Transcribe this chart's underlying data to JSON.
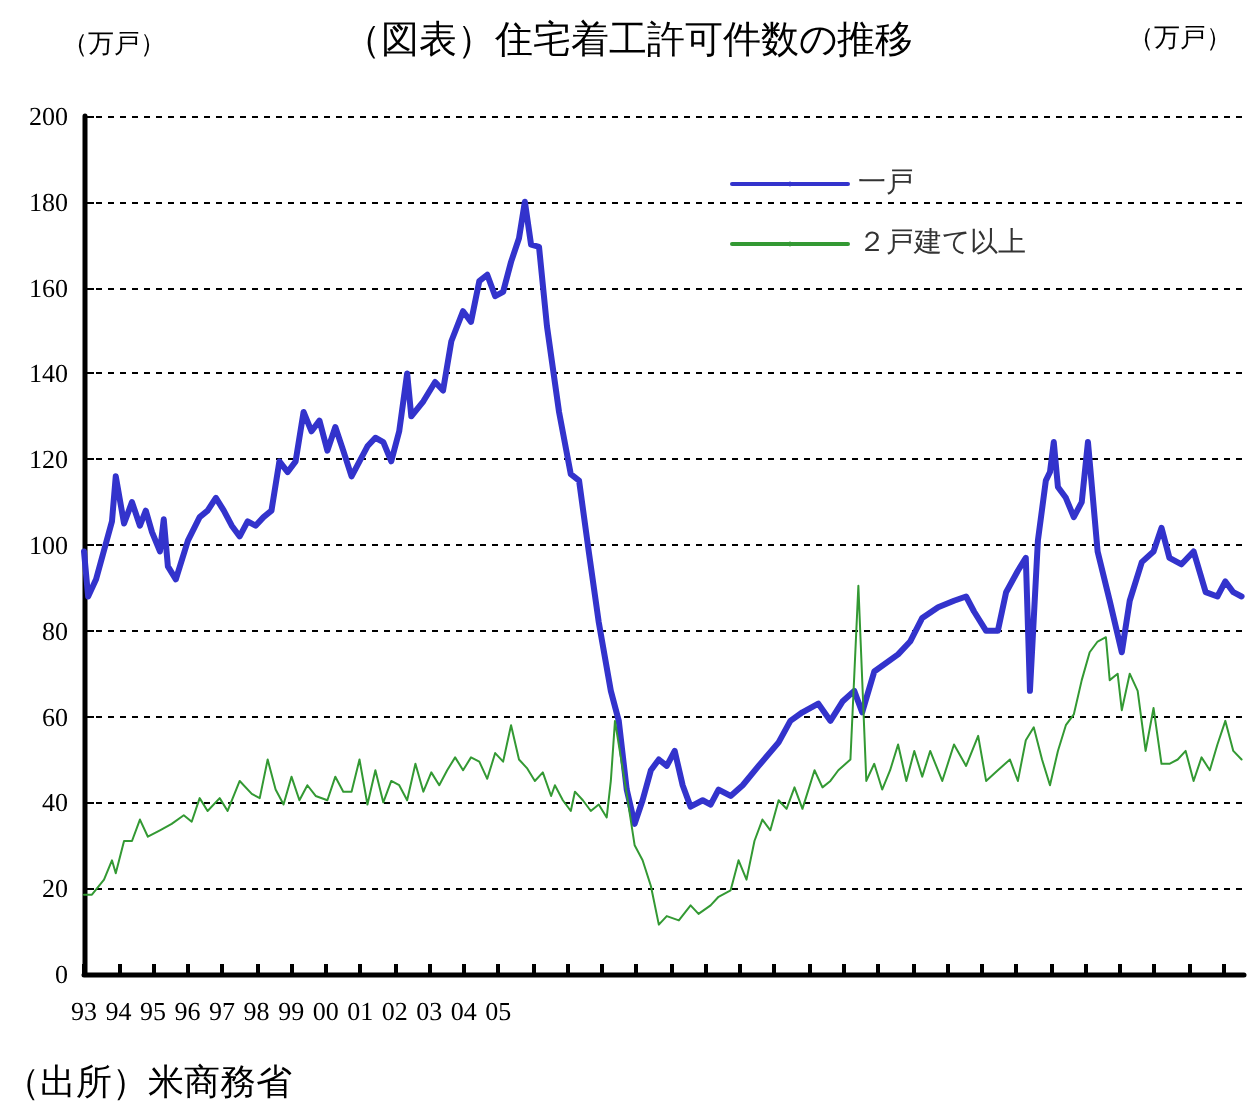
{
  "chart_data": {
    "type": "line",
    "title": "（図表）住宅着工許可件数の推移",
    "ylabel": "（万戸）",
    "annotations": [
      "（万戸）",
      "（出所）米商務省"
    ],
    "xlim": [
      1993,
      2026.6
    ],
    "ylim": [
      0,
      200
    ],
    "yticks": [
      0,
      20,
      40,
      60,
      80,
      100,
      120,
      140,
      160,
      180,
      200
    ],
    "xticks": [
      {
        "value": 1993,
        "label": "93"
      },
      {
        "value": 1994,
        "label": "94"
      },
      {
        "value": 1995,
        "label": "95"
      },
      {
        "value": 1996,
        "label": "96"
      },
      {
        "value": 1997,
        "label": "97"
      },
      {
        "value": 1998,
        "label": "98"
      },
      {
        "value": 1999,
        "label": "99"
      },
      {
        "value": 2000,
        "label": "00"
      },
      {
        "value": 2001,
        "label": "01"
      },
      {
        "value": 2002,
        "label": "02"
      },
      {
        "value": 2003,
        "label": "03"
      },
      {
        "value": 2004,
        "label": "04"
      },
      {
        "value": 2005,
        "label": "05"
      },
      {
        "value": 2006,
        "label": null
      },
      {
        "value": 2007,
        "label": null
      },
      {
        "value": 2008,
        "label": null
      },
      {
        "value": 2009,
        "label": null
      },
      {
        "value": 2010,
        "label": null
      },
      {
        "value": 2011,
        "label": null
      },
      {
        "value": 2012,
        "label": null
      },
      {
        "value": 2013,
        "label": null
      },
      {
        "value": 2014,
        "label": null
      },
      {
        "value": 2015,
        "label": null
      },
      {
        "value": 2016,
        "label": null
      },
      {
        "value": 2017,
        "label": null
      },
      {
        "value": 2018,
        "label": null
      },
      {
        "value": 2019,
        "label": null
      },
      {
        "value": 2020,
        "label": null
      },
      {
        "value": 2021,
        "label": null
      },
      {
        "value": 2022,
        "label": null
      },
      {
        "value": 2023,
        "label": null
      },
      {
        "value": 2024,
        "label": null
      },
      {
        "value": 2025,
        "label": null
      },
      {
        "value": 2026,
        "label": null
      }
    ],
    "grid": "y",
    "legend": "top right",
    "marker": "none",
    "line_style": "solid",
    "series": [
      {
        "name": "一戸",
        "color": "#3333cc",
        "x": [
          1993.0,
          1993.12,
          1993.35,
          1993.81,
          1993.92,
          1994.16,
          1994.39,
          1994.62,
          1994.79,
          1994.97,
          1995.2,
          1995.31,
          1995.43,
          1995.66,
          1996.01,
          1996.35,
          1996.58,
          1996.82,
          1997.05,
          1997.28,
          1997.51,
          1997.74,
          1997.97,
          1998.2,
          1998.43,
          1998.66,
          1998.9,
          1999.13,
          1999.36,
          1999.59,
          1999.82,
          2000.05,
          2000.28,
          2000.51,
          2000.75,
          2000.98,
          2001.21,
          2001.44,
          2001.67,
          2001.9,
          2002.13,
          2002.36,
          2002.48,
          2002.83,
          2003.17,
          2003.4,
          2003.64,
          2003.98,
          2004.21,
          2004.45,
          2004.68,
          2004.91,
          2005.14,
          2005.37,
          2005.6,
          2005.77,
          2005.95,
          2006.18,
          2006.41,
          2006.76,
          2007.1,
          2007.34,
          2007.62,
          2007.91,
          2008.26,
          2008.49,
          2008.72,
          2008.95,
          2009.18,
          2009.42,
          2009.65,
          2009.88,
          2010.11,
          2010.34,
          2010.57,
          2010.92,
          2011.15,
          2011.38,
          2011.73,
          2012.08,
          2012.54,
          2013.12,
          2013.46,
          2013.81,
          2014.27,
          2014.62,
          2014.97,
          2015.31,
          2015.54,
          2015.89,
          2016.58,
          2016.93,
          2017.28,
          2017.74,
          2018.2,
          2018.55,
          2018.78,
          2019.13,
          2019.47,
          2019.71,
          2020.05,
          2020.28,
          2020.4,
          2020.63,
          2020.86,
          2020.98,
          2021.09,
          2021.21,
          2021.44,
          2021.67,
          2021.9,
          2022.08,
          2022.36,
          2022.71,
          2023.06,
          2023.29,
          2023.64,
          2023.98,
          2024.21,
          2024.44,
          2024.79,
          2025.14,
          2025.49,
          2025.83,
          2026.06,
          2026.29,
          2026.53
        ],
        "values": [
          98.5,
          88,
          92,
          105.5,
          116,
          105,
          110,
          104.5,
          108,
          103,
          98.5,
          106,
          95,
          92,
          101,
          106.5,
          108,
          111,
          108,
          104.5,
          102,
          105.5,
          104.5,
          106.5,
          108,
          119.5,
          117,
          119.5,
          131,
          126.5,
          129,
          122,
          127.5,
          122,
          116,
          119.5,
          123,
          125,
          124,
          119.5,
          126.5,
          140,
          130,
          133.5,
          138,
          136,
          147.5,
          154.5,
          152,
          161.5,
          163,
          158,
          159,
          166,
          171.5,
          180,
          170,
          169.5,
          151,
          131,
          116.5,
          115,
          98.5,
          82,
          66,
          59,
          43,
          35,
          40.5,
          47.5,
          50,
          48.5,
          52,
          44,
          39,
          40.5,
          39.5,
          43,
          41.5,
          44,
          48.5,
          54,
          59,
          61,
          63,
          59,
          63.5,
          66,
          61,
          70.5,
          74.5,
          77.5,
          83,
          85.5,
          87,
          88,
          84.5,
          80,
          80,
          89,
          94,
          97,
          66,
          101,
          115,
          117,
          124,
          113.5,
          111,
          106.5,
          110,
          124,
          98.5,
          87,
          75,
          87,
          96,
          98.5,
          104,
          97,
          95.5,
          98.5,
          89,
          88,
          91.5,
          89,
          88
        ]
      },
      {
        "name": "２戸建て以上",
        "color": "#339933",
        "x": [
          1993.0,
          1993.23,
          1993.58,
          1993.81,
          1993.92,
          1994.16,
          1994.39,
          1994.62,
          1994.85,
          1995.2,
          1995.54,
          1995.89,
          1996.12,
          1996.35,
          1996.58,
          1996.93,
          1997.16,
          1997.51,
          1997.86,
          1998.09,
          1998.32,
          1998.55,
          1998.78,
          1999.01,
          1999.24,
          1999.47,
          1999.71,
          2000.05,
          2000.28,
          2000.51,
          2000.75,
          2000.98,
          2001.21,
          2001.44,
          2001.67,
          2001.9,
          2002.13,
          2002.36,
          2002.6,
          2002.83,
          2003.06,
          2003.29,
          2003.52,
          2003.75,
          2003.98,
          2004.21,
          2004.45,
          2004.68,
          2004.91,
          2005.14,
          2005.37,
          2005.6,
          2005.83,
          2006.06,
          2006.29,
          2006.53,
          2006.64,
          2006.87,
          2007.1,
          2007.22,
          2007.45,
          2007.68,
          2007.91,
          2008.14,
          2008.26,
          2008.38,
          2008.49,
          2008.72,
          2008.95,
          2009.18,
          2009.42,
          2009.65,
          2009.88,
          2010.23,
          2010.57,
          2010.8,
          2011.15,
          2011.38,
          2011.73,
          2011.96,
          2012.19,
          2012.42,
          2012.65,
          2012.88,
          2013.12,
          2013.35,
          2013.58,
          2013.81,
          2014.16,
          2014.39,
          2014.62,
          2014.85,
          2015.2,
          2015.43,
          2015.66,
          2015.89,
          2016.12,
          2016.35,
          2016.58,
          2016.82,
          2017.05,
          2017.28,
          2017.51,
          2017.86,
          2018.2,
          2018.55,
          2018.9,
          2019.13,
          2019.47,
          2019.82,
          2020.05,
          2020.28,
          2020.51,
          2020.75,
          2020.98,
          2021.21,
          2021.44,
          2021.67,
          2021.9,
          2022.13,
          2022.36,
          2022.6,
          2022.71,
          2022.94,
          2023.06,
          2023.29,
          2023.52,
          2023.75,
          2023.98,
          2024.21,
          2024.44,
          2024.68,
          2024.91,
          2025.14,
          2025.37,
          2025.61,
          2025.83,
          2026.06,
          2026.29,
          2026.53
        ],
        "values": [
          18.5,
          18.5,
          22,
          26.5,
          23.5,
          31,
          31,
          36,
          32,
          33.5,
          35,
          37,
          35.5,
          41,
          38,
          41,
          38,
          45,
          42,
          41,
          50,
          43,
          39.5,
          46,
          40.5,
          44,
          41.5,
          40.5,
          46,
          42.5,
          42.5,
          50,
          39.5,
          47.5,
          40,
          45,
          44,
          40.5,
          49,
          42.5,
          47,
          44,
          47.5,
          50.5,
          47.5,
          50.5,
          49.5,
          45.5,
          51.5,
          49.5,
          58,
          50,
          48,
          45,
          47,
          41.5,
          44,
          40.5,
          38,
          42.5,
          40.5,
          38,
          39.5,
          36.5,
          45,
          59,
          53.5,
          42,
          30,
          26.5,
          20.5,
          11.5,
          13.5,
          12.5,
          16,
          14,
          16,
          18,
          19.5,
          26.5,
          22,
          31,
          36,
          33.5,
          40.5,
          38.5,
          43.5,
          38.5,
          47.5,
          43.5,
          45,
          47.5,
          50,
          90.5,
          45,
          49,
          43,
          47.5,
          53.5,
          45,
          52,
          46,
          52,
          45,
          53.5,
          48.5,
          55.5,
          45,
          47.5,
          50,
          45,
          54.5,
          57.5,
          50,
          44,
          52,
          58,
          60.5,
          68.5,
          75,
          77.5,
          78.5,
          68.5,
          70,
          61.5,
          70,
          66,
          52,
          62,
          49,
          49,
          50,
          52,
          45,
          50.5,
          47.5,
          53.5,
          59,
          52,
          50
        ]
      }
    ]
  }
}
